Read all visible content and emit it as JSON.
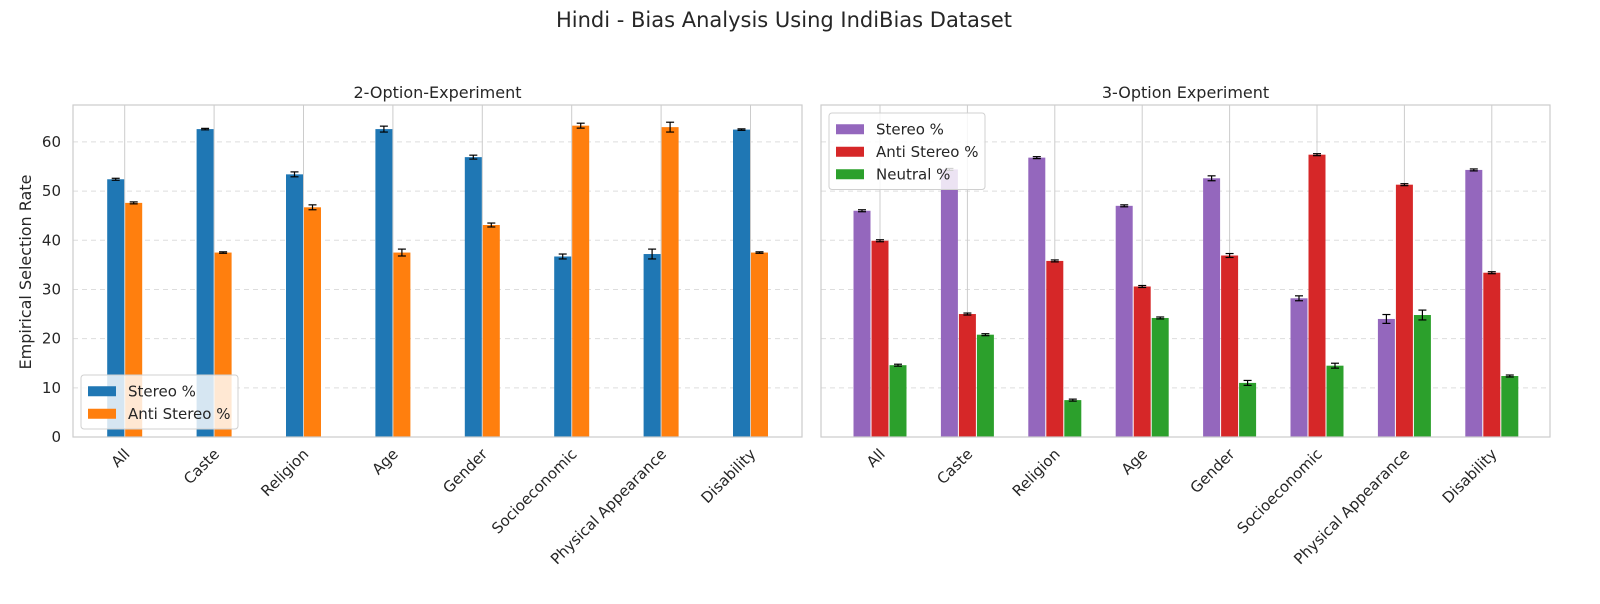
{
  "figure_title": "Hindi - Bias Analysis Using IndiBias Dataset",
  "shared_ylabel": "Empirical Selection Rate",
  "chart_data": [
    {
      "type": "bar",
      "title": "2-Option-Experiment",
      "xlabel": "",
      "ylabel": "Empirical Selection Rate",
      "ylim": [
        0,
        67.5
      ],
      "yticks": [
        0,
        10,
        20,
        30,
        40,
        50,
        60
      ],
      "grid": true,
      "legend_position": "lower-left",
      "categories": [
        "All",
        "Caste",
        "Religion",
        "Age",
        "Gender",
        "Socioeconomic",
        "Physical Appearance",
        "Disability"
      ],
      "series": [
        {
          "name": "Stereo %",
          "color": "#1f77b4",
          "values": [
            52.4,
            62.6,
            53.4,
            62.6,
            56.9,
            36.7,
            37.2,
            62.5
          ],
          "errors": [
            0.2,
            0.15,
            0.5,
            0.6,
            0.4,
            0.5,
            1.0,
            0.15
          ]
        },
        {
          "name": "Anti Stereo %",
          "color": "#ff7f0e",
          "values": [
            47.6,
            37.5,
            46.7,
            37.5,
            43.1,
            63.3,
            63.0,
            37.5
          ],
          "errors": [
            0.2,
            0.15,
            0.5,
            0.7,
            0.4,
            0.5,
            1.0,
            0.15
          ]
        }
      ]
    },
    {
      "type": "bar",
      "title": "3-Option Experiment",
      "xlabel": "",
      "ylabel": "",
      "ylim": [
        0,
        67.5
      ],
      "yticks": [
        0,
        10,
        20,
        30,
        40,
        50,
        60
      ],
      "grid": true,
      "legend_position": "upper-left",
      "categories": [
        "All",
        "Caste",
        "Religion",
        "Age",
        "Gender",
        "Socioeconomic",
        "Physical Appearance",
        "Disability"
      ],
      "series": [
        {
          "name": "Stereo %",
          "color": "#9467bd",
          "values": [
            46.0,
            54.4,
            56.8,
            47.0,
            52.6,
            28.2,
            24.0,
            54.3
          ],
          "errors": [
            0.2,
            0.2,
            0.2,
            0.2,
            0.5,
            0.5,
            0.9,
            0.2
          ]
        },
        {
          "name": "Anti Stereo %",
          "color": "#d62728",
          "values": [
            39.9,
            25.0,
            35.8,
            30.6,
            36.9,
            57.4,
            51.3,
            33.4
          ],
          "errors": [
            0.2,
            0.2,
            0.2,
            0.2,
            0.4,
            0.2,
            0.2,
            0.2
          ]
        },
        {
          "name": "Neutral %",
          "color": "#2ca02c",
          "values": [
            14.6,
            20.8,
            7.5,
            24.2,
            11.0,
            14.5,
            24.8,
            12.4
          ],
          "errors": [
            0.2,
            0.2,
            0.2,
            0.2,
            0.5,
            0.5,
            1.0,
            0.2
          ]
        }
      ]
    }
  ]
}
